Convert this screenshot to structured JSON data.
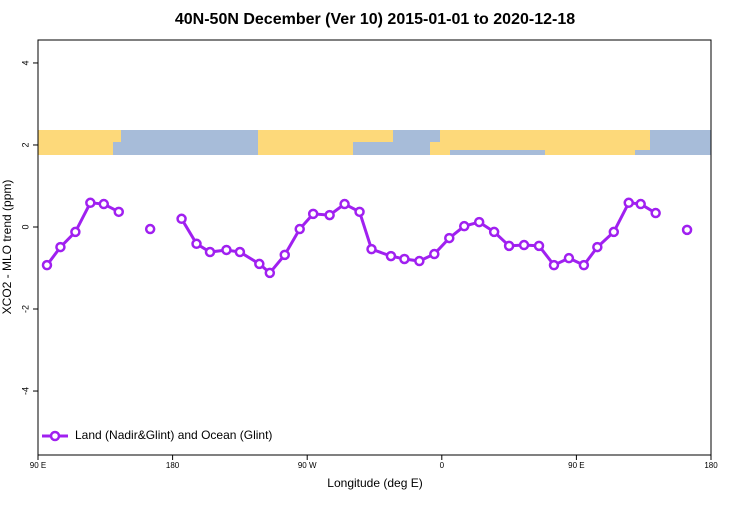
{
  "chart_data": {
    "type": "line",
    "title": "40N-50N December (Ver 10)   2015-01-01 to 2020-12-18",
    "x_label": "Longitude (deg E)",
    "y_label": "XCO2 - MLO trend (ppm)",
    "xlim": [
      90,
      540
    ],
    "xticks": [
      {
        "value": 90,
        "label": "90 E"
      },
      {
        "value": 180,
        "label": "180"
      },
      {
        "value": 270,
        "label": "90 W"
      },
      {
        "value": 360,
        "label": "0"
      },
      {
        "value": 450,
        "label": "90 E"
      },
      {
        "value": 540,
        "label": "180"
      }
    ],
    "ylim": [
      -5.56,
      4.56
    ],
    "yticks": [
      -4,
      -2,
      0,
      2,
      4
    ],
    "legend": "bottom-left",
    "series": [
      {
        "name": "Land (Nadir&Glint) and Ocean (Glint)",
        "color": "#a020f0",
        "x": [
          96,
          105,
          115,
          125,
          134,
          144,
          154,
          165,
          176,
          186,
          196,
          205,
          216,
          225,
          238,
          245,
          255,
          265,
          274,
          285,
          295,
          305,
          313,
          326,
          335,
          345,
          355,
          365,
          375,
          385,
          395,
          405,
          415,
          425,
          435,
          445,
          455,
          464,
          475,
          485,
          493,
          503,
          514,
          524
        ],
        "values": [
          -0.93,
          -0.49,
          -0.12,
          0.59,
          0.56,
          0.37,
          null,
          -0.05,
          null,
          0.2,
          -0.41,
          -0.61,
          -0.56,
          -0.61,
          -0.9,
          -1.12,
          -0.68,
          -0.05,
          0.32,
          0.29,
          0.56,
          0.37,
          -0.54,
          -0.71,
          -0.78,
          -0.83,
          -0.66,
          -0.27,
          0.02,
          0.12,
          -0.12,
          -0.46,
          -0.44,
          -0.46,
          -0.93,
          -0.76,
          -0.93,
          -0.49,
          -0.12,
          0.59,
          0.56,
          0.34,
          null,
          -0.07
        ]
      }
    ]
  }
}
